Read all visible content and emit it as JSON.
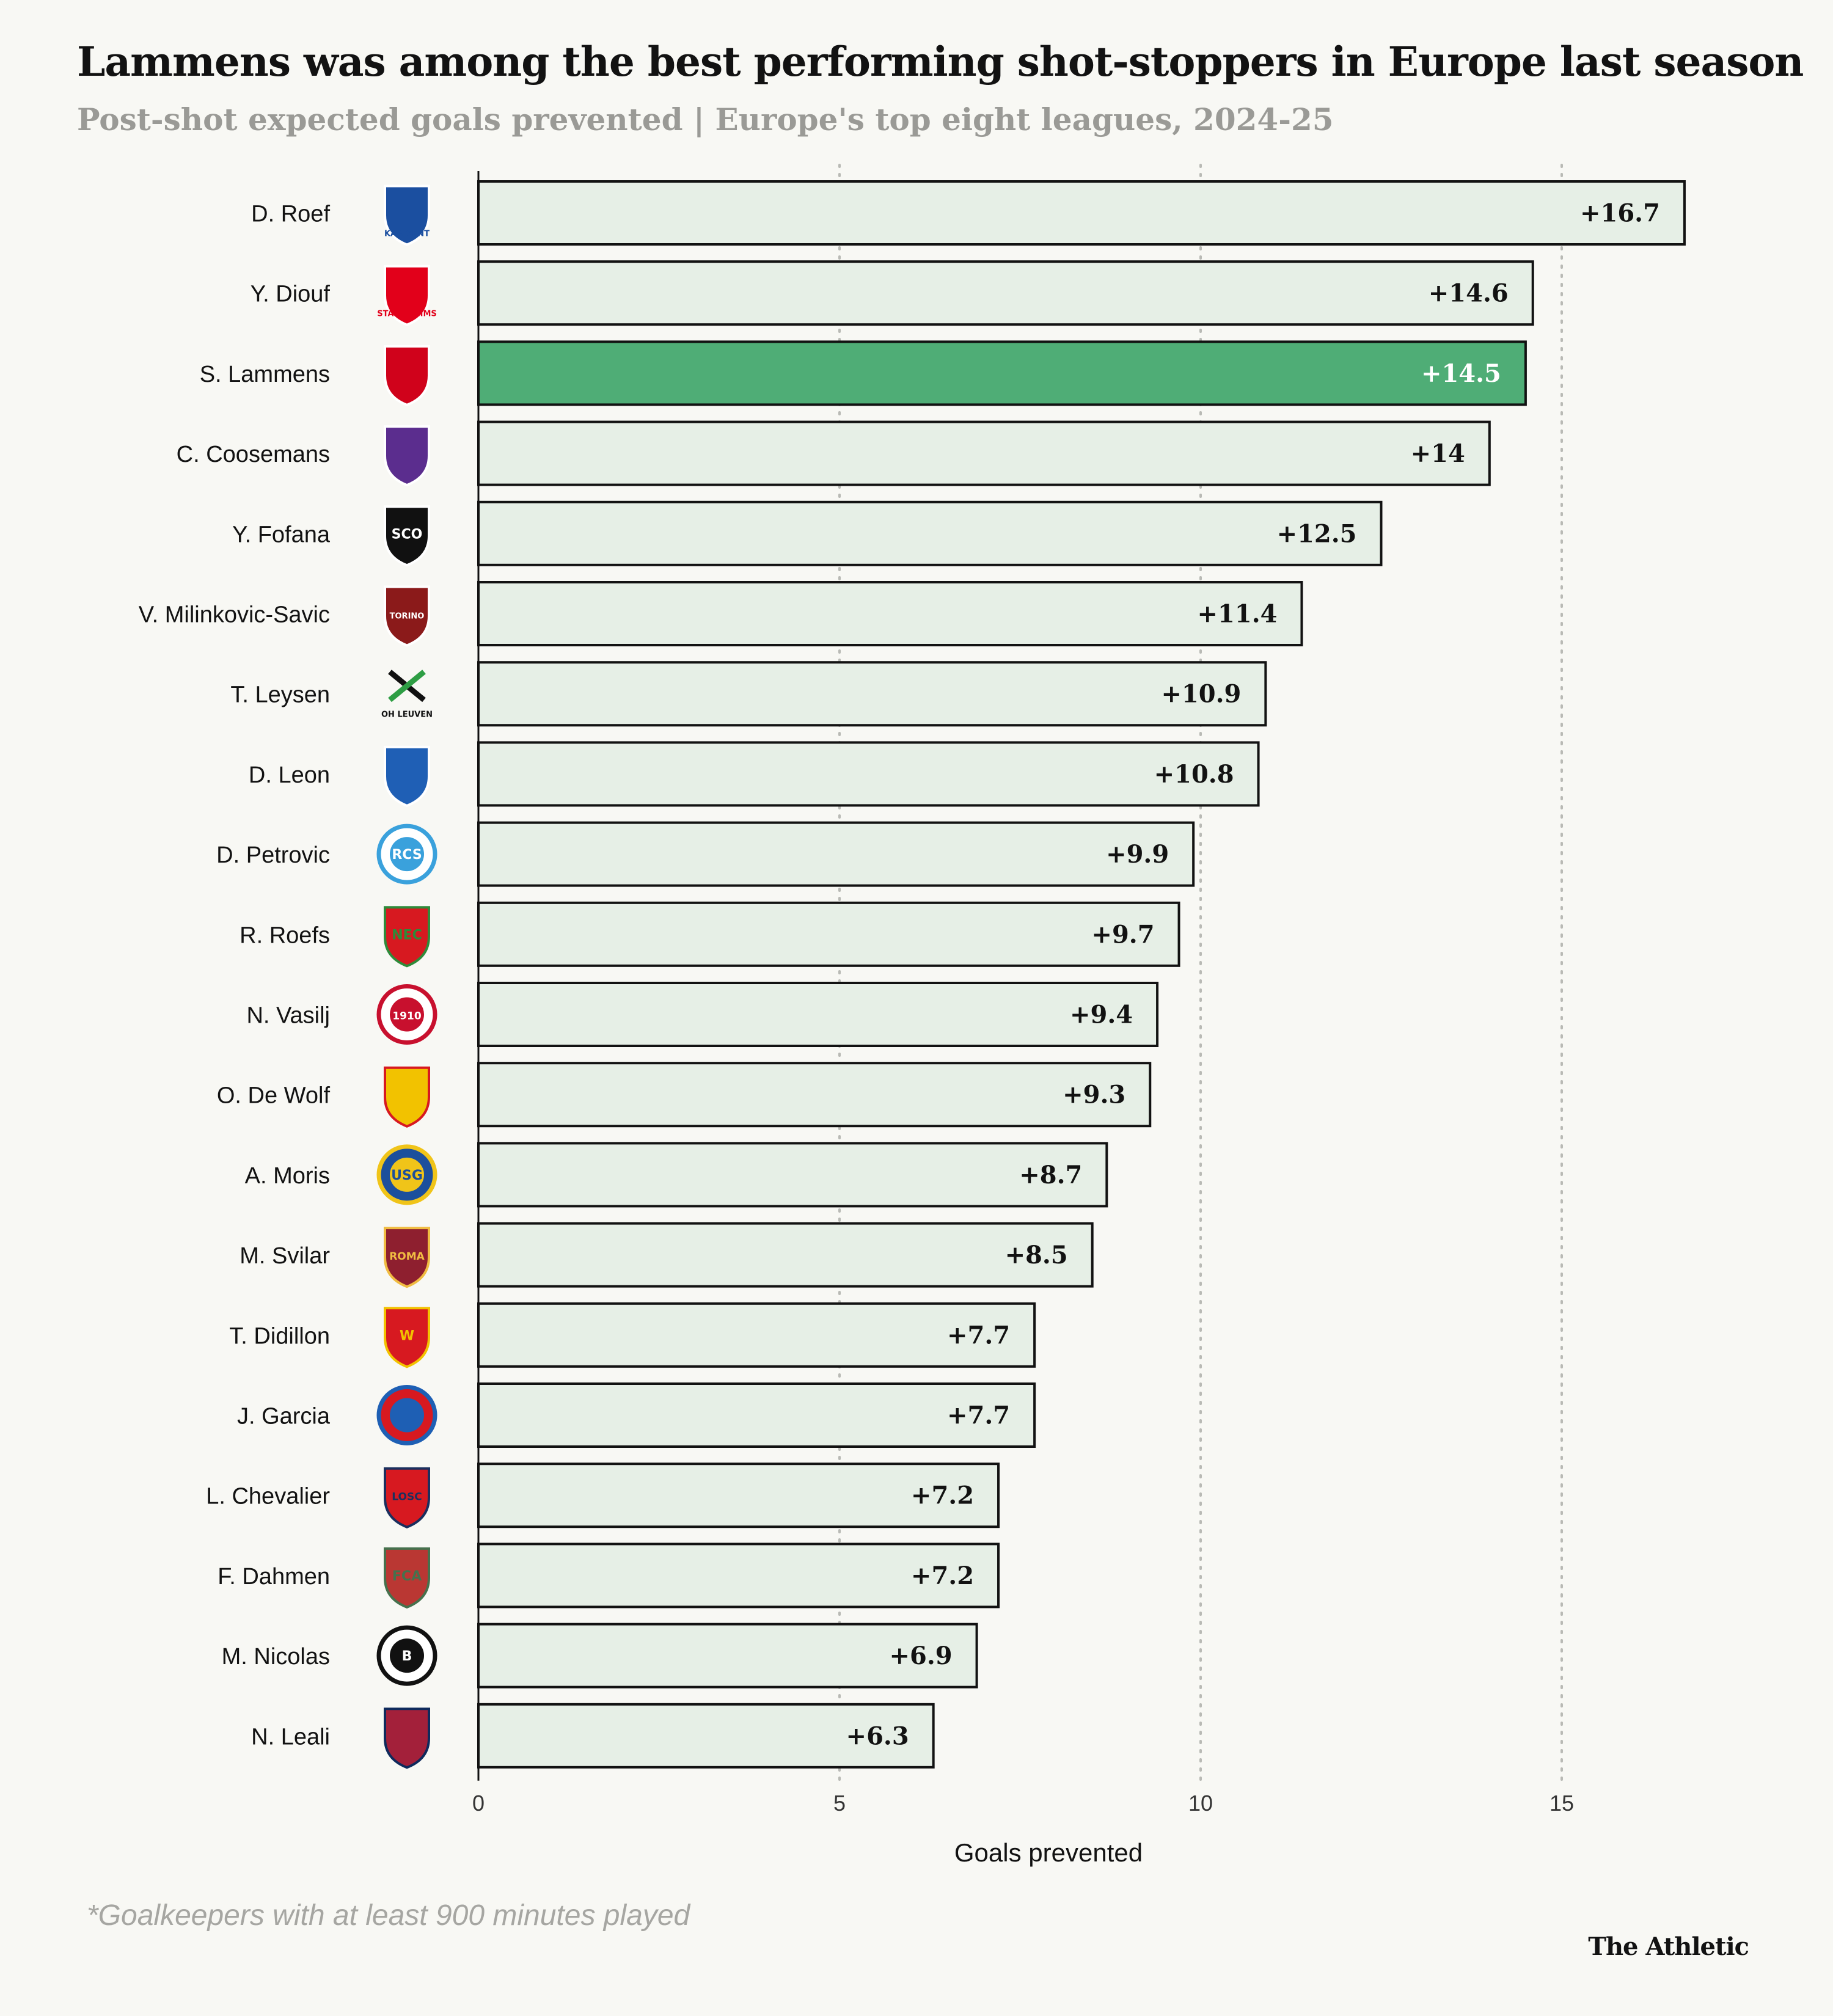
{
  "chart_data": {
    "type": "bar",
    "orientation": "horizontal",
    "title": "Lammens was among the best performing shot-stoppers in Europe last season",
    "subtitle": "Post-shot expected goals prevented | Europe's top eight leagues, 2024-25",
    "xlabel": "Goals prevented",
    "ylabel": "",
    "xlim": [
      0,
      17
    ],
    "xticks": [
      0,
      5,
      10,
      15
    ],
    "grid": "vertical dotted",
    "highlight": "S. Lammens",
    "colors": {
      "bar": "#e6efe6",
      "highlight": "#4fad76",
      "highlight_label": "#ffffff"
    },
    "categories": [
      "D. Roef",
      "Y. Diouf",
      "S. Lammens",
      "C. Coosemans",
      "Y. Fofana",
      "V. Milinkovic-Savic",
      "T. Leysen",
      "D. Leon",
      "D. Petrovic",
      "R. Roefs",
      "N. Vasilj",
      "O. De Wolf",
      "A. Moris",
      "M. Svilar",
      "T. Didillon",
      "J. Garcia",
      "L. Chevalier",
      "F. Dahmen",
      "M. Nicolas",
      "N. Leali"
    ],
    "values": [
      16.7,
      14.6,
      14.5,
      14,
      12.5,
      11.4,
      10.9,
      10.8,
      9.9,
      9.7,
      9.4,
      9.3,
      8.7,
      8.5,
      7.7,
      7.7,
      7.2,
      7.2,
      6.9,
      6.3
    ],
    "data_labels": [
      "+16.7",
      "+14.6",
      "+14.5",
      "+14",
      "+12.5",
      "+11.4",
      "+10.9",
      "+10.8",
      "+9.9",
      "+9.7",
      "+9.4",
      "+9.3",
      "+8.7",
      "+8.5",
      "+7.7",
      "+7.7",
      "+7.2",
      "+7.2",
      "+6.9",
      "+6.3"
    ],
    "club_logos": [
      {
        "icon": "kaa-gent-crest-icon",
        "text": "KAA GENT",
        "colors": [
          "#1b4fa0",
          "#ffffff"
        ]
      },
      {
        "icon": "stade-reims-crest-icon",
        "text": "STADE REIMS",
        "colors": [
          "#e2001a",
          "#ffffff"
        ]
      },
      {
        "icon": "royal-antwerp-crest-icon",
        "text": "",
        "colors": [
          "#d0021b",
          "#ffffff"
        ]
      },
      {
        "icon": "anderlecht-crest-icon",
        "text": "",
        "colors": [
          "#5b2d8e",
          "#ffffff"
        ]
      },
      {
        "icon": "angers-sco-crest-icon",
        "text": "SCO",
        "colors": [
          "#111111",
          "#ffffff"
        ]
      },
      {
        "icon": "torino-crest-icon",
        "text": "TORINO",
        "colors": [
          "#8b1a1a",
          "#ffffff"
        ]
      },
      {
        "icon": "oh-leuven-crest-icon",
        "text": "OH LEUVEN",
        "colors": [
          "#111111",
          "#2e9e44"
        ]
      },
      {
        "icon": "auxerre-crest-icon",
        "text": "",
        "colors": [
          "#1f5fb5",
          "#ffffff"
        ]
      },
      {
        "icon": "strasbourg-crest-icon",
        "text": "RCS",
        "colors": [
          "#3aa1dc",
          "#ffffff"
        ]
      },
      {
        "icon": "nec-nijmegen-crest-icon",
        "text": "NEC",
        "colors": [
          "#d71920",
          "#2e8b3a"
        ]
      },
      {
        "icon": "st-pauli-crest-icon",
        "text": "1910",
        "colors": [
          "#c8102e",
          "#ffffff"
        ]
      },
      {
        "icon": "kv-mechelen-crest-icon",
        "text": "",
        "colors": [
          "#f2c200",
          "#d71920"
        ]
      },
      {
        "icon": "union-sg-crest-icon",
        "text": "USG",
        "colors": [
          "#f0c419",
          "#1c4f9c"
        ]
      },
      {
        "icon": "as-roma-crest-icon",
        "text": "ROMA",
        "colors": [
          "#8e1f2f",
          "#f0bc42"
        ]
      },
      {
        "icon": "willem-ii-crest-icon",
        "text": "W",
        "colors": [
          "#d71920",
          "#f2c200"
        ]
      },
      {
        "icon": "espanyol-crest-icon",
        "text": "",
        "colors": [
          "#1e5fb4",
          "#d71920"
        ]
      },
      {
        "icon": "lille-losc-crest-icon",
        "text": "LOSC",
        "colors": [
          "#d71920",
          "#1b2f5e"
        ]
      },
      {
        "icon": "fc-augsburg-crest-icon",
        "text": "FCA",
        "colors": [
          "#ba3733",
          "#46714d"
        ]
      },
      {
        "icon": "borussia-monchengladbach-crest-icon",
        "text": "B",
        "colors": [
          "#111111",
          "#ffffff"
        ]
      },
      {
        "icon": "genoa-crest-icon",
        "text": "",
        "colors": [
          "#a3203a",
          "#0f2a5c"
        ]
      }
    ]
  },
  "footnote": "*Goalkeepers with at least 900 minutes played",
  "brand": "The Athletic"
}
